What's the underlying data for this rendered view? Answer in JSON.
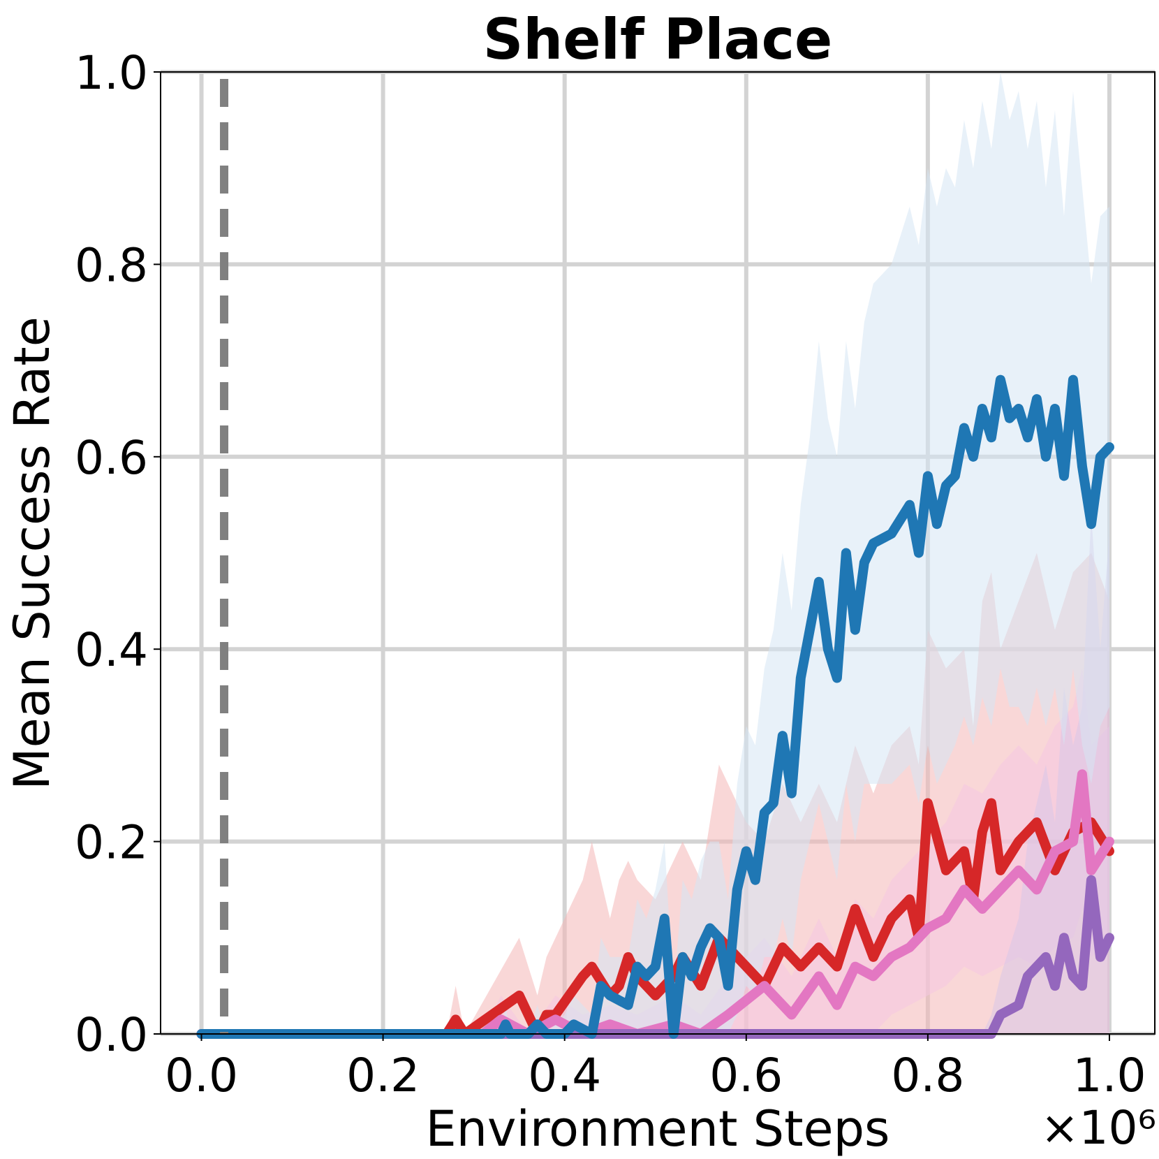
{
  "chart_data": {
    "type": "line",
    "title": "Shelf Place",
    "xlabel": "Environment Steps",
    "ylabel": "Mean Success Rate",
    "x_multiplier_label": "×10⁶",
    "xlim": [
      -0.045,
      1.05
    ],
    "ylim": [
      0.0,
      1.0
    ],
    "xticks": [
      "0.0",
      "0.2",
      "0.4",
      "0.6",
      "0.8",
      "1.0"
    ],
    "yticks": [
      "0.0",
      "0.2",
      "0.4",
      "0.6",
      "0.8",
      "1.0"
    ],
    "grid": true,
    "vline_dashed_at": 0.025,
    "series": [
      {
        "color": "#d62728",
        "fill_color": "#f4b6b6",
        "x": [
          0.0,
          0.27,
          0.28,
          0.29,
          0.35,
          0.37,
          0.38,
          0.39,
          0.42,
          0.43,
          0.45,
          0.46,
          0.47,
          0.48,
          0.5,
          0.52,
          0.53,
          0.55,
          0.57,
          0.6,
          0.62,
          0.64,
          0.66,
          0.68,
          0.7,
          0.72,
          0.74,
          0.76,
          0.78,
          0.79,
          0.8,
          0.82,
          0.84,
          0.85,
          0.86,
          0.87,
          0.88,
          0.9,
          0.92,
          0.94,
          0.96,
          0.98,
          1.0
        ],
        "y": [
          0.0,
          0.0,
          0.015,
          0.0,
          0.04,
          0.0,
          0.02,
          0.02,
          0.06,
          0.07,
          0.04,
          0.05,
          0.08,
          0.06,
          0.04,
          0.06,
          0.08,
          0.05,
          0.1,
          0.07,
          0.05,
          0.09,
          0.07,
          0.09,
          0.07,
          0.13,
          0.08,
          0.12,
          0.14,
          0.1,
          0.24,
          0.17,
          0.19,
          0.14,
          0.21,
          0.24,
          0.17,
          0.2,
          0.22,
          0.17,
          0.21,
          0.22,
          0.19
        ],
        "upper": [
          0.0,
          0.0,
          0.05,
          0.0,
          0.1,
          0.04,
          0.08,
          0.1,
          0.16,
          0.2,
          0.12,
          0.16,
          0.18,
          0.16,
          0.14,
          0.18,
          0.2,
          0.16,
          0.28,
          0.22,
          0.2,
          0.26,
          0.22,
          0.26,
          0.22,
          0.3,
          0.25,
          0.3,
          0.32,
          0.28,
          0.42,
          0.38,
          0.4,
          0.32,
          0.45,
          0.48,
          0.4,
          0.45,
          0.5,
          0.42,
          0.48,
          0.5,
          0.45
        ],
        "lower": [
          0.0,
          0.0,
          0.0,
          0.0,
          0.0,
          0.0,
          0.0,
          0.0,
          0.0,
          0.0,
          0.0,
          0.0,
          0.0,
          0.0,
          0.0,
          0.0,
          0.0,
          0.0,
          0.0,
          0.0,
          0.0,
          0.0,
          0.0,
          0.0,
          0.0,
          0.0,
          0.0,
          0.0,
          0.0,
          0.0,
          0.0,
          0.0,
          0.0,
          0.0,
          0.0,
          0.0,
          0.0,
          0.0,
          0.0,
          0.0,
          0.0,
          0.0,
          0.0
        ]
      },
      {
        "color": "#e377c2",
        "fill_color": "#f6c6e2",
        "x": [
          0.0,
          0.31,
          0.33,
          0.36,
          0.39,
          0.42,
          0.45,
          0.48,
          0.52,
          0.55,
          0.58,
          0.62,
          0.65,
          0.68,
          0.7,
          0.72,
          0.74,
          0.76,
          0.78,
          0.8,
          0.82,
          0.84,
          0.86,
          0.88,
          0.9,
          0.92,
          0.94,
          0.96,
          0.97,
          0.98,
          1.0
        ],
        "y": [
          0.0,
          0.0,
          0.015,
          0.0,
          0.015,
          0.0,
          0.01,
          0.0,
          0.01,
          0.0,
          0.02,
          0.05,
          0.02,
          0.06,
          0.03,
          0.07,
          0.06,
          0.08,
          0.09,
          0.11,
          0.12,
          0.15,
          0.13,
          0.15,
          0.17,
          0.15,
          0.19,
          0.2,
          0.27,
          0.17,
          0.2
        ],
        "upper": [
          0.0,
          0.0,
          0.04,
          0.0,
          0.04,
          0.02,
          0.03,
          0.02,
          0.04,
          0.02,
          0.06,
          0.1,
          0.06,
          0.12,
          0.08,
          0.14,
          0.12,
          0.16,
          0.18,
          0.2,
          0.22,
          0.26,
          0.25,
          0.28,
          0.3,
          0.28,
          0.32,
          0.34,
          0.38,
          0.3,
          0.32
        ],
        "lower": [
          0.0,
          0.0,
          0.0,
          0.0,
          0.0,
          0.0,
          0.0,
          0.0,
          0.0,
          0.0,
          0.0,
          0.0,
          0.0,
          0.0,
          0.0,
          0.0,
          0.0,
          0.02,
          0.03,
          0.04,
          0.05,
          0.07,
          0.06,
          0.07,
          0.08,
          0.07,
          0.09,
          0.1,
          0.13,
          0.08,
          0.1
        ]
      },
      {
        "color": "#9467bd",
        "fill_color": "#d9c6e8",
        "x": [
          0.0,
          0.86,
          0.87,
          0.88,
          0.9,
          0.91,
          0.93,
          0.94,
          0.95,
          0.96,
          0.97,
          0.98,
          0.99,
          1.0
        ],
        "y": [
          0.0,
          0.0,
          0.0,
          0.02,
          0.03,
          0.06,
          0.08,
          0.05,
          0.1,
          0.06,
          0.05,
          0.16,
          0.08,
          0.1
        ],
        "upper": [
          0.0,
          0.0,
          0.02,
          0.06,
          0.12,
          0.2,
          0.28,
          0.22,
          0.36,
          0.3,
          0.34,
          0.54,
          0.4,
          0.52
        ],
        "lower": [
          0.0,
          0.0,
          0.0,
          0.0,
          0.0,
          0.0,
          0.0,
          0.0,
          0.0,
          0.0,
          0.0,
          0.0,
          0.0,
          0.0
        ]
      },
      {
        "color": "#1f77b4",
        "fill_color": "#d6e6f4",
        "x": [
          0.0,
          0.33,
          0.335,
          0.34,
          0.36,
          0.37,
          0.38,
          0.4,
          0.41,
          0.43,
          0.44,
          0.45,
          0.47,
          0.48,
          0.49,
          0.5,
          0.51,
          0.52,
          0.53,
          0.54,
          0.55,
          0.56,
          0.57,
          0.58,
          0.59,
          0.6,
          0.61,
          0.62,
          0.63,
          0.64,
          0.65,
          0.66,
          0.67,
          0.68,
          0.69,
          0.7,
          0.71,
          0.72,
          0.73,
          0.74,
          0.76,
          0.78,
          0.79,
          0.8,
          0.81,
          0.82,
          0.83,
          0.84,
          0.85,
          0.86,
          0.87,
          0.88,
          0.89,
          0.9,
          0.91,
          0.92,
          0.93,
          0.94,
          0.95,
          0.96,
          0.97,
          0.98,
          0.99,
          1.0
        ],
        "y": [
          0.0,
          0.0,
          0.01,
          0.0,
          0.0,
          0.01,
          0.0,
          0.0,
          0.01,
          0.0,
          0.05,
          0.04,
          0.03,
          0.07,
          0.06,
          0.07,
          0.12,
          0.0,
          0.08,
          0.06,
          0.09,
          0.11,
          0.1,
          0.05,
          0.15,
          0.19,
          0.16,
          0.23,
          0.24,
          0.31,
          0.25,
          0.37,
          0.42,
          0.47,
          0.4,
          0.37,
          0.5,
          0.42,
          0.49,
          0.51,
          0.52,
          0.55,
          0.5,
          0.58,
          0.53,
          0.57,
          0.58,
          0.63,
          0.6,
          0.65,
          0.62,
          0.68,
          0.64,
          0.65,
          0.62,
          0.66,
          0.6,
          0.65,
          0.58,
          0.68,
          0.59,
          0.53,
          0.6,
          0.61
        ],
        "upper": [
          0.0,
          0.0,
          0.03,
          0.0,
          0.0,
          0.03,
          0.0,
          0.02,
          0.04,
          0.02,
          0.1,
          0.08,
          0.08,
          0.14,
          0.12,
          0.15,
          0.2,
          0.04,
          0.16,
          0.14,
          0.18,
          0.2,
          0.2,
          0.14,
          0.26,
          0.32,
          0.3,
          0.38,
          0.42,
          0.5,
          0.44,
          0.55,
          0.62,
          0.72,
          0.64,
          0.6,
          0.72,
          0.65,
          0.74,
          0.78,
          0.8,
          0.86,
          0.82,
          0.9,
          0.86,
          0.9,
          0.88,
          0.95,
          0.9,
          0.97,
          0.92,
          1.0,
          0.95,
          0.98,
          0.92,
          0.97,
          0.88,
          0.96,
          0.85,
          0.98,
          0.88,
          0.78,
          0.85,
          0.86
        ],
        "lower": [
          0.0,
          0.0,
          0.0,
          0.0,
          0.0,
          0.0,
          0.0,
          0.0,
          0.0,
          0.0,
          0.0,
          0.0,
          0.0,
          0.0,
          0.0,
          0.0,
          0.0,
          0.0,
          0.0,
          0.0,
          0.0,
          0.0,
          0.0,
          0.0,
          0.02,
          0.05,
          0.04,
          0.08,
          0.08,
          0.12,
          0.08,
          0.16,
          0.2,
          0.24,
          0.2,
          0.16,
          0.26,
          0.2,
          0.26,
          0.26,
          0.26,
          0.28,
          0.24,
          0.3,
          0.26,
          0.28,
          0.3,
          0.33,
          0.3,
          0.35,
          0.32,
          0.38,
          0.34,
          0.34,
          0.32,
          0.36,
          0.32,
          0.36,
          0.3,
          0.38,
          0.3,
          0.26,
          0.32,
          0.34
        ]
      }
    ]
  }
}
